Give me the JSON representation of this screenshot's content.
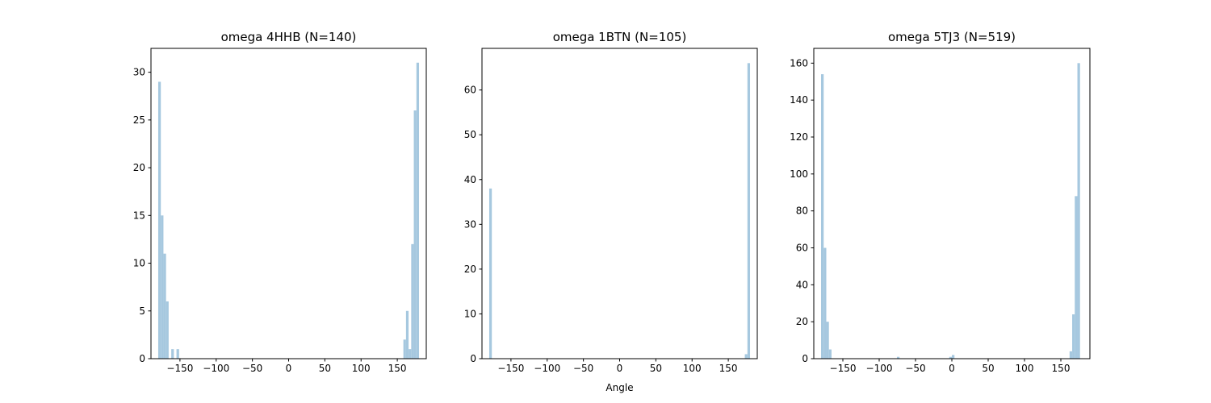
{
  "figure": {
    "background": "#ffffff",
    "bar_color": "#a6c8df"
  },
  "chart_data": [
    {
      "type": "bar",
      "title": "omega 4HHB (N=140)",
      "xlabel": "",
      "ylabel": "",
      "xlim": [
        -190,
        190
      ],
      "ylim": [
        0,
        32.5
      ],
      "xticks": [
        -150,
        -100,
        -50,
        0,
        50,
        100,
        150
      ],
      "xtick_labels": [
        "−150",
        "−100",
        "−50",
        "0",
        "50",
        "100",
        "150"
      ],
      "yticks": [
        0,
        5,
        10,
        15,
        20,
        25,
        30
      ],
      "ytick_labels": [
        "0",
        "5",
        "10",
        "15",
        "20",
        "25",
        "30"
      ],
      "grid": false,
      "bin_width": 3.6,
      "bins": [
        {
          "x": -180,
          "value": 29
        },
        {
          "x": -176.4,
          "value": 15
        },
        {
          "x": -172.8,
          "value": 11
        },
        {
          "x": -169.2,
          "value": 6
        },
        {
          "x": -162,
          "value": 1
        },
        {
          "x": -154.8,
          "value": 1
        },
        {
          "x": 158.4,
          "value": 2
        },
        {
          "x": 162,
          "value": 5
        },
        {
          "x": 165.6,
          "value": 1
        },
        {
          "x": 169.2,
          "value": 12
        },
        {
          "x": 172.8,
          "value": 26
        },
        {
          "x": 176.4,
          "value": 31
        }
      ]
    },
    {
      "type": "bar",
      "title": "omega 1BTN (N=105)",
      "xlabel": "Angle",
      "ylabel": "",
      "xlim": [
        -190,
        190
      ],
      "ylim": [
        0,
        69.3
      ],
      "xticks": [
        -150,
        -100,
        -50,
        0,
        50,
        100,
        150
      ],
      "xtick_labels": [
        "−150",
        "−100",
        "−50",
        "0",
        "50",
        "100",
        "150"
      ],
      "yticks": [
        0,
        10,
        20,
        30,
        40,
        50,
        60
      ],
      "ytick_labels": [
        "0",
        "10",
        "20",
        "30",
        "40",
        "50",
        "60"
      ],
      "grid": false,
      "bin_width": 3.6,
      "bins": [
        {
          "x": -180,
          "value": 38
        },
        {
          "x": 172.8,
          "value": 1
        },
        {
          "x": 176.4,
          "value": 66
        }
      ]
    },
    {
      "type": "bar",
      "title": "omega 5TJ3 (N=519)",
      "xlabel": "",
      "ylabel": "",
      "xlim": [
        -190,
        190
      ],
      "ylim": [
        0,
        168
      ],
      "xticks": [
        -150,
        -100,
        -50,
        0,
        50,
        100,
        150
      ],
      "xtick_labels": [
        "−150",
        "−100",
        "−50",
        "0",
        "50",
        "100",
        "150"
      ],
      "yticks": [
        0,
        20,
        40,
        60,
        80,
        100,
        120,
        140,
        160
      ],
      "ytick_labels": [
        "0",
        "20",
        "40",
        "60",
        "80",
        "100",
        "120",
        "140",
        "160"
      ],
      "grid": false,
      "bin_width": 3.6,
      "bins": [
        {
          "x": -180,
          "value": 154
        },
        {
          "x": -176.4,
          "value": 60
        },
        {
          "x": -172.8,
          "value": 20
        },
        {
          "x": -169.2,
          "value": 5
        },
        {
          "x": -75.6,
          "value": 1
        },
        {
          "x": -3.6,
          "value": 1
        },
        {
          "x": 0,
          "value": 2
        },
        {
          "x": 162,
          "value": 4
        },
        {
          "x": 165.6,
          "value": 24
        },
        {
          "x": 169.2,
          "value": 88
        },
        {
          "x": 172.8,
          "value": 160
        }
      ]
    }
  ]
}
